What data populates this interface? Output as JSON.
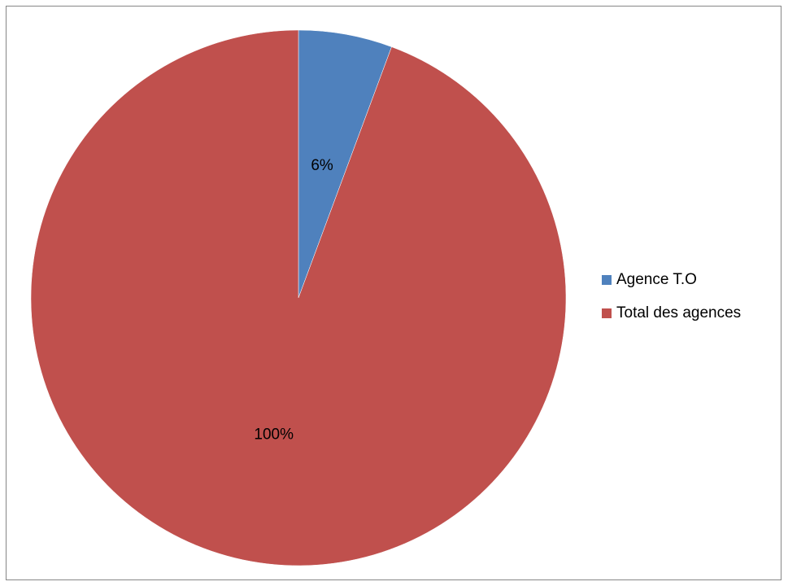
{
  "chart_data": {
    "type": "pie",
    "slices": [
      {
        "label": "Agence T.O",
        "value": 6,
        "display": "6%",
        "color": "#4F81BD"
      },
      {
        "label": "Total des agences",
        "value": 100,
        "display": "100%",
        "color": "#C0504D"
      }
    ],
    "start_angle_deg": 0,
    "direction": "clockwise",
    "legend_position": "right"
  }
}
